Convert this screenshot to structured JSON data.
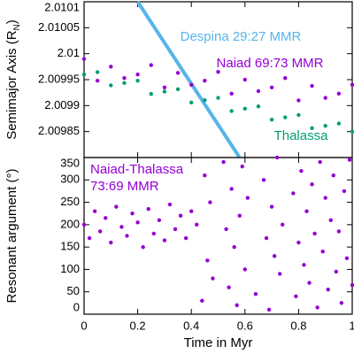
{
  "chart_data": [
    {
      "type": "scatter",
      "ylabel": [
        "Semimajor Axis (R",
        "N",
        ")"
      ],
      "xlim": [
        0,
        1
      ],
      "xticks": [
        0,
        0.2,
        0.4,
        0.6,
        0.8,
        1
      ],
      "ylim": [
        2.0098,
        2.0101
      ],
      "yticks": [
        2.00985,
        2.0099,
        2.00995,
        2.01,
        2.01005,
        2.0101
      ],
      "series": [
        {
          "name": "Despina 29:27 MMR",
          "color": "#56b4e9",
          "marker": "line",
          "x": [
            0.2,
            0.22,
            0.24,
            0.26,
            0.28,
            0.3,
            0.32,
            0.34,
            0.36,
            0.38,
            0.4,
            0.42,
            0.44,
            0.46,
            0.48,
            0.5,
            0.52,
            0.54,
            0.56,
            0.58
          ],
          "values": [
            2.0101,
            2.0100842,
            2.0100684,
            2.0100526,
            2.0100368,
            2.0100211,
            2.0100053,
            2.0099895,
            2.0099737,
            2.0099579,
            2.0099421,
            2.0099263,
            2.0099105,
            2.0098947,
            2.0098789,
            2.0098632,
            2.0098474,
            2.0098316,
            2.0098158,
            2.0098
          ]
        },
        {
          "name": "Naiad 69:73 MMR",
          "color": "#9400d3",
          "marker": "points",
          "x": [
            0,
            0.05,
            0.1,
            0.15,
            0.2,
            0.25,
            0.3,
            0.35,
            0.4,
            0.45,
            0.5,
            0.55,
            0.6,
            0.65,
            0.7,
            0.75,
            0.8,
            0.85,
            0.9,
            0.95,
            1
          ],
          "values": [
            2.00999,
            2.009948,
            2.009975,
            2.009953,
            2.00996,
            2.009978,
            2.009935,
            2.009963,
            2.00994,
            2.009948,
            2.009965,
            2.009923,
            2.00995,
            2.009928,
            2.009935,
            2.009953,
            2.00991,
            2.009938,
            2.009915,
            2.009923,
            2.00994
          ]
        },
        {
          "name": "Thalassa",
          "color": "#009e73",
          "marker": "points",
          "x": [
            0,
            0.05,
            0.1,
            0.15,
            0.2,
            0.25,
            0.3,
            0.35,
            0.4,
            0.45,
            0.5,
            0.55,
            0.6,
            0.65,
            0.7,
            0.75,
            0.8,
            0.85,
            0.9,
            0.95,
            1
          ],
          "values": [
            2.00996,
            2.0099645,
            2.009939,
            2.0099435,
            2.009948,
            2.0099225,
            2.009927,
            2.0099315,
            2.009906,
            2.0099105,
            2.009915,
            2.0098895,
            2.009894,
            2.0098985,
            2.009873,
            2.0098775,
            2.009882,
            2.0098565,
            2.009861,
            2.0098655,
            2.00985
          ]
        }
      ]
    },
    {
      "type": "scatter",
      "ylabel": [
        "Resonant argument (°)"
      ],
      "xlabel": "Time in Myr",
      "annotation": [
        "Naiad-Thalassa",
        "73:69 MMR"
      ],
      "xlim": [
        0,
        1
      ],
      "xticks": [
        0,
        0.2,
        0.4,
        0.6,
        0.8,
        1
      ],
      "ylim": [
        0,
        350
      ],
      "yticks": [
        0,
        50,
        100,
        150,
        200,
        250,
        300,
        350
      ],
      "series": [
        {
          "color": "#9400d3",
          "marker": "points",
          "x": [
            0,
            0.02,
            0.04,
            0.06,
            0.08,
            0.1,
            0.12,
            0.14,
            0.16,
            0.18,
            0.2,
            0.22,
            0.24,
            0.26,
            0.28,
            0.3,
            0.32,
            0.34,
            0.36,
            0.38,
            0.4,
            0.42,
            0.44,
            0.45,
            0.46,
            0.47,
            0.48,
            0.52,
            0.53,
            0.54,
            0.55,
            0.56,
            0.57,
            0.58,
            0.59,
            0.6,
            0.61,
            0.64,
            0.67,
            0.68,
            0.69,
            0.7,
            0.71,
            0.72,
            0.73,
            0.74,
            0.78,
            0.79,
            0.8,
            0.81,
            0.82,
            0.83,
            0.84,
            0.85,
            0.86,
            0.87,
            0.88,
            0.89,
            0.9,
            0.91,
            0.92,
            0.93,
            0.94,
            0.95,
            0.96,
            0.97,
            0.98,
            0.99,
            1
          ],
          "values": [
            200,
            170,
            230,
            185,
            215,
            160,
            240,
            195,
            175,
            225,
            205,
            150,
            235,
            180,
            210,
            165,
            245,
            190,
            220,
            170,
            230,
            200,
            30,
            310,
            120,
            250,
            80,
            340,
            190,
            60,
            280,
            150,
            20,
            220,
            330,
            100,
            260,
            45,
            300,
            170,
            10,
            240,
            130,
            350,
            90,
            200,
            270,
            40,
            160,
            320,
            110,
            230,
            70,
            290,
            180,
            15,
            340,
            140,
            260,
            55,
            210,
            310,
            95,
            185,
            25,
            275,
            125,
            345,
            65
          ]
        }
      ]
    }
  ]
}
